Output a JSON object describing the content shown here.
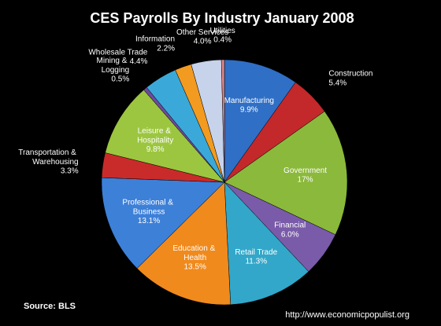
{
  "chart_data": {
    "type": "pie",
    "title": "CES Payrolls By Industry January 2008",
    "categories": [
      "Manufacturing",
      "Construction",
      "Government",
      "Financial",
      "Retail Trade",
      "Education & Health",
      "Professional & Business",
      "Transportation & Warehousing",
      "Leisure & Hospitality",
      "Mining & Logging",
      "Wholesale Trade",
      "Information",
      "Other Services",
      "Utilities"
    ],
    "values": [
      9.9,
      5.4,
      17,
      6.0,
      11.3,
      13.5,
      13.1,
      3.3,
      9.8,
      0.5,
      4.4,
      2.2,
      4.0,
      0.4
    ],
    "value_labels": [
      "9.9%",
      "5.4%",
      "17%",
      "6.0%",
      "11.3%",
      "13.5%",
      "13.1%",
      "3.3%",
      "9.8%",
      "0.5%",
      "4.4%",
      "2.2%",
      "4.0%",
      "0.4%"
    ],
    "colors": [
      "#2f6fc6",
      "#c3282b",
      "#8bb93b",
      "#7a5ba9",
      "#32a7c9",
      "#f08a1d",
      "#3d80d8",
      "#c92b2b",
      "#9cc63f",
      "#6d4a9c",
      "#3aa9da",
      "#f39b20",
      "#c7d3ea",
      "#e08585"
    ],
    "source": "Source:  BLS",
    "footer": "http://www.economicpopulist.org"
  }
}
